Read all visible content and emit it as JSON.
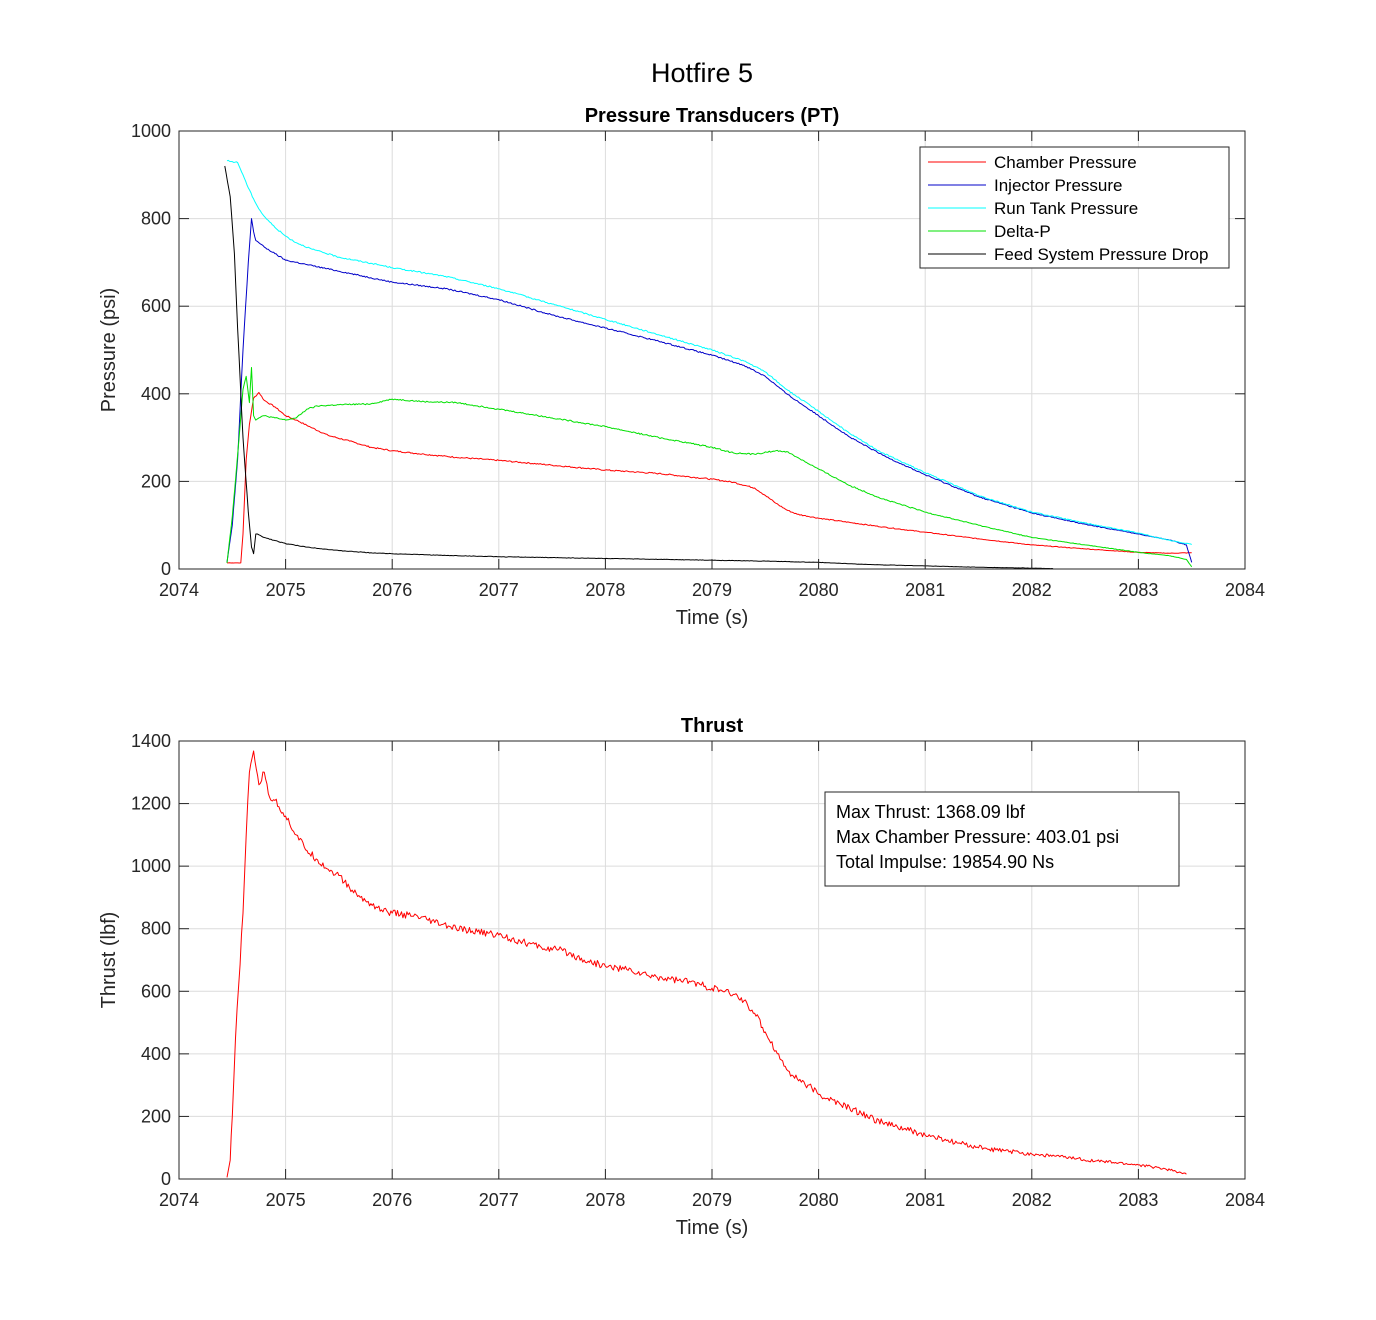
{
  "figure": {
    "title": "Hotfire 5"
  },
  "chart_data": [
    {
      "id": "pt",
      "type": "line",
      "title": "Pressure Transducers (PT)",
      "xlabel": "Time (s)",
      "ylabel": "Pressure (psi)",
      "xlim": [
        2074,
        2084
      ],
      "ylim": [
        0,
        1000
      ],
      "xticks": [
        2074,
        2075,
        2076,
        2077,
        2078,
        2079,
        2080,
        2081,
        2082,
        2083,
        2084
      ],
      "yticks": [
        0,
        200,
        400,
        600,
        800,
        1000
      ],
      "grid": true,
      "legend": "top-right",
      "series": [
        {
          "name": "Chamber Pressure",
          "color": "#ff0000",
          "x": [
            2074.45,
            2074.5,
            2074.55,
            2074.58,
            2074.6,
            2074.63,
            2074.66,
            2074.7,
            2074.75,
            2074.8,
            2074.9,
            2075.0,
            2075.1,
            2075.25,
            2075.4,
            2075.6,
            2075.8,
            2076.0,
            2076.3,
            2076.6,
            2077.0,
            2077.5,
            2078.0,
            2078.5,
            2079.0,
            2079.2,
            2079.4,
            2079.5,
            2079.6,
            2079.7,
            2079.8,
            2080.0,
            2080.3,
            2080.6,
            2081.0,
            2081.5,
            2082.0,
            2082.5,
            2083.0,
            2083.3,
            2083.5
          ],
          "y": [
            14,
            14,
            14,
            14,
            80,
            250,
            330,
            390,
            403,
            385,
            370,
            350,
            340,
            322,
            305,
            292,
            278,
            270,
            262,
            255,
            248,
            237,
            226,
            218,
            205,
            198,
            185,
            168,
            150,
            135,
            125,
            116,
            106,
            96,
            84,
            69,
            55,
            46,
            38,
            36,
            37
          ]
        },
        {
          "name": "Injector Pressure",
          "color": "#0000c8",
          "x": [
            2074.45,
            2074.5,
            2074.55,
            2074.6,
            2074.65,
            2074.68,
            2074.7,
            2074.72,
            2074.75,
            2074.8,
            2074.9,
            2075.0,
            2075.2,
            2075.5,
            2075.8,
            2076.0,
            2076.5,
            2077.0,
            2077.5,
            2078.0,
            2078.5,
            2079.0,
            2079.3,
            2079.5,
            2079.7,
            2080.0,
            2080.3,
            2080.6,
            2081.0,
            2081.5,
            2082.0,
            2082.5,
            2083.0,
            2083.3,
            2083.45,
            2083.5
          ],
          "y": [
            15,
            100,
            250,
            500,
            700,
            800,
            770,
            750,
            745,
            735,
            720,
            705,
            695,
            680,
            665,
            655,
            640,
            615,
            580,
            550,
            520,
            488,
            465,
            440,
            400,
            350,
            300,
            260,
            215,
            165,
            128,
            102,
            80,
            66,
            55,
            15
          ]
        },
        {
          "name": "Run Tank Pressure",
          "color": "#00ffff",
          "x": [
            2074.45,
            2074.55,
            2074.6,
            2074.65,
            2074.7,
            2074.75,
            2074.8,
            2074.9,
            2075.0,
            2075.1,
            2075.25,
            2075.5,
            2075.8,
            2076.0,
            2076.5,
            2077.0,
            2077.5,
            2078.0,
            2078.5,
            2079.0,
            2079.3,
            2079.5,
            2079.7,
            2080.0,
            2080.3,
            2080.6,
            2081.0,
            2081.5,
            2082.0,
            2082.5,
            2083.0,
            2083.3,
            2083.5
          ],
          "y": [
            932,
            928,
            900,
            870,
            845,
            822,
            805,
            780,
            760,
            745,
            730,
            712,
            698,
            688,
            668,
            640,
            605,
            570,
            535,
            500,
            475,
            450,
            410,
            360,
            308,
            265,
            220,
            168,
            130,
            105,
            82,
            65,
            56
          ]
        },
        {
          "name": "Delta-P",
          "color": "#00e000",
          "x": [
            2074.45,
            2074.5,
            2074.55,
            2074.6,
            2074.63,
            2074.66,
            2074.68,
            2074.7,
            2074.72,
            2074.75,
            2074.8,
            2074.9,
            2075.0,
            2075.1,
            2075.2,
            2075.3,
            2075.5,
            2075.8,
            2076.0,
            2076.3,
            2076.6,
            2077.0,
            2077.5,
            2078.0,
            2078.5,
            2079.0,
            2079.2,
            2079.4,
            2079.6,
            2079.7,
            2079.8,
            2080.0,
            2080.3,
            2080.6,
            2081.0,
            2081.5,
            2082.0,
            2082.5,
            2083.0,
            2083.3,
            2083.45,
            2083.5
          ],
          "y": [
            14,
            120,
            260,
            410,
            440,
            380,
            460,
            350,
            340,
            345,
            350,
            345,
            340,
            345,
            365,
            372,
            375,
            377,
            388,
            382,
            380,
            365,
            345,
            325,
            300,
            278,
            265,
            262,
            270,
            268,
            255,
            228,
            190,
            160,
            130,
            100,
            72,
            55,
            38,
            30,
            22,
            5
          ]
        },
        {
          "name": "Feed System Pressure Drop",
          "color": "#000000",
          "x": [
            2074.43,
            2074.48,
            2074.52,
            2074.55,
            2074.6,
            2074.65,
            2074.68,
            2074.7,
            2074.72,
            2074.75,
            2074.8,
            2074.9,
            2075.0,
            2075.2,
            2075.5,
            2075.8,
            2076.0,
            2076.5,
            2077.0,
            2077.5,
            2078.0,
            2078.5,
            2079.0,
            2079.5,
            2080.0,
            2080.5,
            2081.0,
            2081.5,
            2082.0,
            2082.2
          ],
          "y": [
            920,
            850,
            720,
            550,
            300,
            130,
            50,
            35,
            80,
            78,
            72,
            65,
            58,
            50,
            42,
            37,
            35,
            31,
            28,
            26,
            24,
            22,
            20,
            18,
            15,
            10,
            7,
            4,
            2,
            1
          ]
        }
      ]
    },
    {
      "id": "thrust",
      "type": "line",
      "title": "Thrust",
      "xlabel": "Time (s)",
      "ylabel": "Thrust (lbf)",
      "xlim": [
        2074,
        2084
      ],
      "ylim": [
        0,
        1400
      ],
      "xticks": [
        2074,
        2075,
        2076,
        2077,
        2078,
        2079,
        2080,
        2081,
        2082,
        2083,
        2084
      ],
      "yticks": [
        0,
        200,
        400,
        600,
        800,
        1000,
        1200,
        1400
      ],
      "grid": true,
      "series": [
        {
          "color": "#ff0000",
          "x": [
            2074.45,
            2074.48,
            2074.5,
            2074.53,
            2074.56,
            2074.6,
            2074.63,
            2074.66,
            2074.7,
            2074.75,
            2074.8,
            2074.85,
            2074.9,
            2075.0,
            2075.1,
            2075.2,
            2075.3,
            2075.4,
            2075.5,
            2075.6,
            2075.7,
            2075.8,
            2075.9,
            2076.0,
            2076.2,
            2076.4,
            2076.6,
            2076.8,
            2077.0,
            2077.2,
            2077.4,
            2077.6,
            2077.8,
            2078.0,
            2078.2,
            2078.4,
            2078.6,
            2078.8,
            2079.0,
            2079.1,
            2079.2,
            2079.3,
            2079.4,
            2079.5,
            2079.6,
            2079.7,
            2079.8,
            2079.9,
            2080.0,
            2080.2,
            2080.4,
            2080.6,
            2080.8,
            2081.0,
            2081.3,
            2081.6,
            2082.0,
            2082.3,
            2082.6,
            2083.0,
            2083.2,
            2083.35,
            2083.45
          ],
          "y": [
            5,
            60,
            200,
            450,
            620,
            850,
            1100,
            1300,
            1368,
            1260,
            1300,
            1220,
            1210,
            1160,
            1100,
            1050,
            1020,
            990,
            970,
            930,
            900,
            880,
            860,
            850,
            840,
            820,
            800,
            790,
            780,
            760,
            740,
            730,
            700,
            680,
            670,
            650,
            640,
            630,
            610,
            600,
            590,
            570,
            530,
            470,
            410,
            350,
            320,
            300,
            270,
            240,
            210,
            180,
            160,
            140,
            115,
            95,
            80,
            70,
            58,
            45,
            35,
            25,
            15
          ]
        }
      ],
      "annotation": [
        "Max Thrust: 1368.09 lbf",
        "Max Chamber Pressure: 403.01 psi",
        "Total Impulse: 19854.90 Ns"
      ]
    }
  ]
}
